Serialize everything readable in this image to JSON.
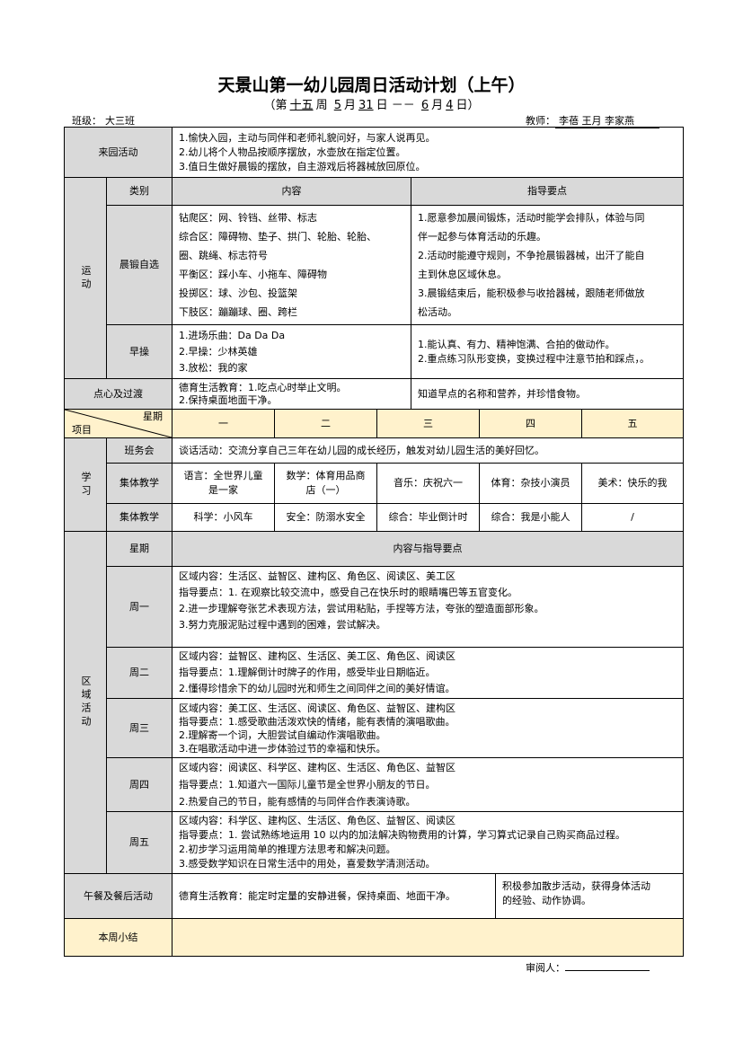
{
  "title": "天景山第一幼儿园周日活动计划（上午）",
  "subtitle": {
    "prefix": "（第",
    "week": "十五",
    "week_suffix": "周",
    "m1": "5",
    "m1_suffix": "月",
    "d1": "31",
    "d1_suffix": "日 －－",
    "m2": "6",
    "m2_suffix": "月",
    "d2": "4",
    "d2_suffix": "日）"
  },
  "class_label": "班级：",
  "class_value": "大三班",
  "teacher_label": "教师：",
  "teacher_value": "李蓓 王月 李家燕",
  "arrival": {
    "label": "来园活动",
    "text": "1.愉快入园，主动与同伴和老师礼貌问好，与家人说再见。\n2.幼儿将个人物品按顺序摆放，水壶放在指定位置。\n3.值日生做好晨锻的摆放，自主游戏后将器械放回原位。"
  },
  "exercise": {
    "label": "运动",
    "headers": {
      "category": "类别",
      "content": "内容",
      "guide": "指导要点"
    },
    "morning": {
      "label": "晨锻自选",
      "content": "钻爬区：网、铃铛、丝带、标志\n综合区：障碍物、垫子、拱门、轮胎、轮胎、\n圈、跳绳、标志符号\n平衡区：踩小车、小拖车、障碍物\n投掷区：球、沙包、投篮架\n下肢区：蹦蹦球、圈、跨栏",
      "guide": "1.愿意参加晨间锻炼，活动时能学会排队，体验与同\n伴一起参与体育活动的乐趣。\n2.活动时能遵守规则，不争抢晨锻器械，出汗了能自\n主到休息区域休息。\n3.晨锻结束后，能积极参与收拾器械，跟随老师做放\n松活动。"
    },
    "drill": {
      "label": "早操",
      "content": "1.进场乐曲：Da Da Da\n2.早操：少林英雄\n3.放松：我的家",
      "guide": "1.能认真、有力、精神饱满、合拍的做动作。\n2.重点练习队形变换，变换过程中注意节拍和踩点，。"
    }
  },
  "snack": {
    "label": "点心及过渡",
    "content": "德育生活教育：1.吃点心时举止文明。\n              2.保持桌面地面干净。",
    "guide": "知道早点的名称和营养，并珍惜食物。"
  },
  "week_header": {
    "day_label": "星期",
    "item_label": "项目",
    "days": [
      "一",
      "二",
      "三",
      "四",
      "五"
    ]
  },
  "study": {
    "label": "学习",
    "meeting": {
      "label": "班务会",
      "text": "谈话活动：交流分享自己三年在幼儿园的成长经历，触发对幼儿园生活的美好回忆。"
    },
    "rows": [
      {
        "label": "集体教学",
        "cells": [
          "语言：全世界儿童\n是一家",
          "数学：体育用品商\n店（一）",
          "音乐：庆祝六一",
          "体育：杂技小演员",
          "美术：快乐的我"
        ]
      },
      {
        "label": "集体教学",
        "cells": [
          "科学：小风车",
          "安全：防溺水安全",
          "综合：毕业倒计时",
          "综合：我是小能人",
          "/"
        ]
      }
    ]
  },
  "area": {
    "label": "区域活动",
    "header": {
      "day": "星期",
      "content": "内容与指导要点"
    },
    "days": [
      {
        "label": "周一",
        "text": "区域内容：生活区、益智区、建构区、角色区、阅读区、美工区\n指导要点：1. 在观察比较交流中，感受自己在快乐时的眼睛嘴巴等五官变化。\n              2.进一步理解夸张艺术表现方法，尝试用粘贴，手捏等方法，夸张的塑造面部形象。\n3.努力克服泥贴过程中遇到的困难，尝试解决。"
      },
      {
        "label": "周二",
        "text": "区域内容：益智区、建构区、生活区、美工区、角色区、阅读区\n指导要点：1.理解倒计时牌子的作用，感受毕业日期临近。\n2.懂得珍惜余下的幼儿园时光和师生之间同伴之间的美好情谊。"
      },
      {
        "label": "周三",
        "text": "区域内容：美工区、生活区、阅读区、角色区、益智区、建构区\n指导要点：1.感受歌曲活泼欢快的情绪，能有表情的演唱歌曲。\n              2.理解寄一个词，大胆尝试自编动作演唱歌曲。\n              3.在唱歌活动中进一步体验过节的幸福和快乐。"
      },
      {
        "label": "周四",
        "text": "区域内容：阅读区、科学区、建构区、生活区、角色区、益智区\n指导要点：1.知道六一国际儿童节是全世界小朋友的节日。\n              2.热爱自己的节日，能有感情的与同伴合作表演诗歌。"
      },
      {
        "label": "周五",
        "text": "区域内容：科学区、建构区、生活区、角色区、益智区、阅读区\n指导要点：1. 尝试熟练地运用 10 以内的加法解决购物费用的计算，学习算式记录自己购买商品过程。\n              2.初步学习运用简单的推理方法思考和解决问题。\n              3.感受数学知识在日常生活中的用处，喜爱数学清测活动。"
      }
    ]
  },
  "lunch": {
    "label": "午餐及餐后活动",
    "content": "德育生活教育：能定时定量的安静进餐，保持桌面、地面干净。",
    "guide": "积极参加散步活动，获得身体活动\n的经验、动作协调。"
  },
  "summary": {
    "label": "本周小结",
    "text": ""
  },
  "reviewer_label": "审阅人：",
  "colors": {
    "gray": "#d9d9d9",
    "yellow": "#fff2cc"
  }
}
